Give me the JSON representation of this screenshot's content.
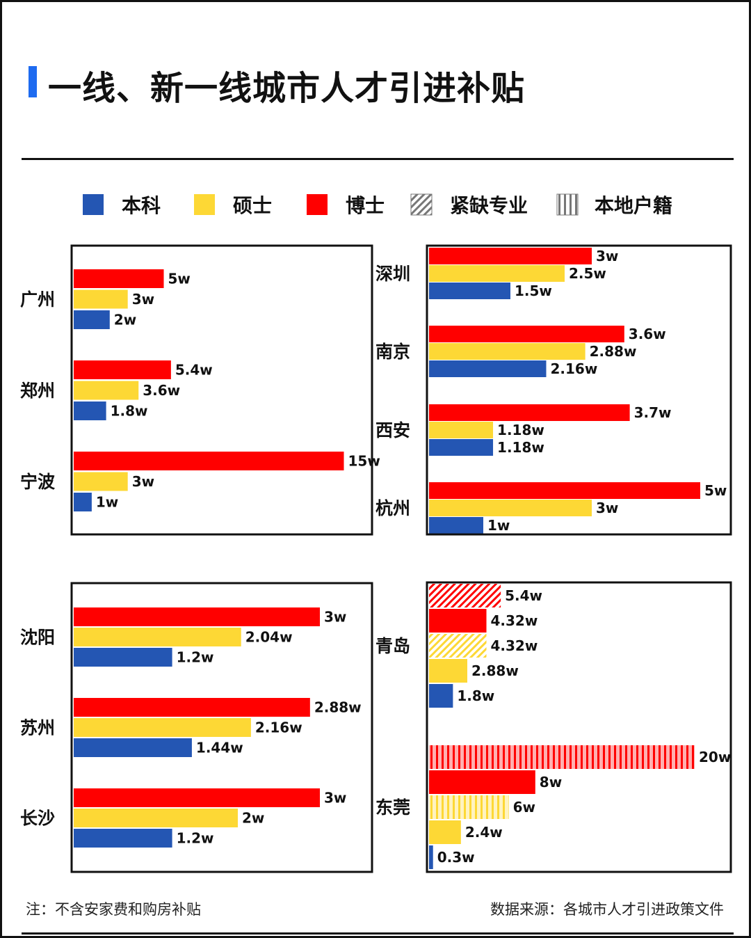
{
  "title": "一线、新一线城市人才引进补贴",
  "footnote_left": "注：不含安家费和购房补贴",
  "footnote_right": "数据来源：各城市人才引进政策文件",
  "colors": {
    "本科": "#2456b3",
    "硕士": "#fdd835",
    "博士": "#ff0000",
    "accent": "#1e6bf0"
  },
  "chart_data": {
    "type": "bar",
    "orientation": "horizontal",
    "unit": "w",
    "legend": {
      "placement": "top",
      "items": [
        {
          "label": "本科",
          "style": "solid",
          "color": "#2456b3"
        },
        {
          "label": "硕士",
          "style": "solid",
          "color": "#fdd835"
        },
        {
          "label": "博士",
          "style": "solid",
          "color": "#ff0000"
        },
        {
          "label": "紧缺专业",
          "style": "diagonal-hatch",
          "color": "#888888"
        },
        {
          "label": "本地户籍",
          "style": "vertical-stripes",
          "color": "#888888"
        }
      ]
    },
    "panels": [
      {
        "cities": [
          {
            "name": "广州",
            "bars": [
              {
                "degree": "博士",
                "type": "",
                "value": 5,
                "label": "5w"
              },
              {
                "degree": "硕士",
                "type": "",
                "value": 3,
                "label": "3w"
              },
              {
                "degree": "本科",
                "type": "",
                "value": 2,
                "label": "2w"
              }
            ]
          },
          {
            "name": "郑州",
            "bars": [
              {
                "degree": "博士",
                "type": "",
                "value": 5.4,
                "label": "5.4w"
              },
              {
                "degree": "硕士",
                "type": "",
                "value": 3.6,
                "label": "3.6w"
              },
              {
                "degree": "本科",
                "type": "",
                "value": 1.8,
                "label": "1.8w"
              }
            ]
          },
          {
            "name": "宁波",
            "bars": [
              {
                "degree": "博士",
                "type": "",
                "value": 15,
                "label": "15w"
              },
              {
                "degree": "硕士",
                "type": "",
                "value": 3,
                "label": "3w"
              },
              {
                "degree": "本科",
                "type": "",
                "value": 1,
                "label": "1w"
              }
            ]
          }
        ]
      },
      {
        "cities": [
          {
            "name": "深圳",
            "bars": [
              {
                "degree": "博士",
                "type": "",
                "value": 3,
                "label": "3w"
              },
              {
                "degree": "硕士",
                "type": "",
                "value": 2.5,
                "label": "2.5w"
              },
              {
                "degree": "本科",
                "type": "",
                "value": 1.5,
                "label": "1.5w"
              }
            ]
          },
          {
            "name": "南京",
            "bars": [
              {
                "degree": "博士",
                "type": "",
                "value": 3.6,
                "label": "3.6w"
              },
              {
                "degree": "硕士",
                "type": "",
                "value": 2.88,
                "label": "2.88w"
              },
              {
                "degree": "本科",
                "type": "",
                "value": 2.16,
                "label": "2.16w"
              }
            ]
          },
          {
            "name": "西安",
            "bars": [
              {
                "degree": "博士",
                "type": "",
                "value": 3.7,
                "label": "3.7w"
              },
              {
                "degree": "硕士",
                "type": "",
                "value": 1.18,
                "label": "1.18w"
              },
              {
                "degree": "本科",
                "type": "",
                "value": 1.18,
                "label": "1.18w"
              }
            ]
          },
          {
            "name": "杭州",
            "bars": [
              {
                "degree": "博士",
                "type": "",
                "value": 5,
                "label": "5w"
              },
              {
                "degree": "硕士",
                "type": "",
                "value": 3,
                "label": "3w"
              },
              {
                "degree": "本科",
                "type": "",
                "value": 1,
                "label": "1w"
              }
            ]
          }
        ]
      },
      {
        "cities": [
          {
            "name": "沈阳",
            "bars": [
              {
                "degree": "博士",
                "type": "",
                "value": 3,
                "label": "3w"
              },
              {
                "degree": "硕士",
                "type": "",
                "value": 2.04,
                "label": "2.04w"
              },
              {
                "degree": "本科",
                "type": "",
                "value": 1.2,
                "label": "1.2w"
              }
            ]
          },
          {
            "name": "苏州",
            "bars": [
              {
                "degree": "博士",
                "type": "",
                "value": 2.88,
                "label": "2.88w"
              },
              {
                "degree": "硕士",
                "type": "",
                "value": 2.16,
                "label": "2.16w"
              },
              {
                "degree": "本科",
                "type": "",
                "value": 1.44,
                "label": "1.44w"
              }
            ]
          },
          {
            "name": "长沙",
            "bars": [
              {
                "degree": "博士",
                "type": "",
                "value": 3,
                "label": "3w"
              },
              {
                "degree": "硕士",
                "type": "",
                "value": 2,
                "label": "2w"
              },
              {
                "degree": "本科",
                "type": "",
                "value": 1.2,
                "label": "1.2w"
              }
            ]
          }
        ]
      },
      {
        "cities": [
          {
            "name": "青岛",
            "bars": [
              {
                "degree": "博士",
                "type": "紧缺专业",
                "value": 5.4,
                "label": "5.4w"
              },
              {
                "degree": "博士",
                "type": "",
                "value": 4.32,
                "label": "4.32w"
              },
              {
                "degree": "硕士",
                "type": "紧缺专业",
                "value": 4.32,
                "label": "4.32w"
              },
              {
                "degree": "硕士",
                "type": "",
                "value": 2.88,
                "label": "2.88w"
              },
              {
                "degree": "本科",
                "type": "",
                "value": 1.8,
                "label": "1.8w"
              }
            ]
          },
          {
            "name": "东莞",
            "bars": [
              {
                "degree": "博士",
                "type": "本地户籍",
                "value": 20,
                "label": "20w"
              },
              {
                "degree": "博士",
                "type": "",
                "value": 8,
                "label": "8w"
              },
              {
                "degree": "硕士",
                "type": "本地户籍",
                "value": 6,
                "label": "6w"
              },
              {
                "degree": "硕士",
                "type": "",
                "value": 2.4,
                "label": "2.4w"
              },
              {
                "degree": "本科",
                "type": "",
                "value": 0.3,
                "label": "0.3w"
              }
            ]
          }
        ]
      }
    ]
  }
}
